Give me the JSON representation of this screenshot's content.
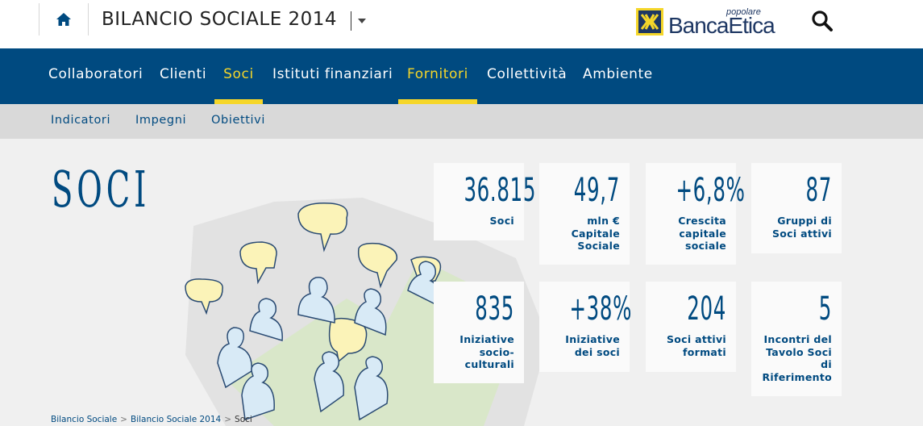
{
  "header": {
    "site_title": "BILANCIO SOCIALE 2014",
    "logo_small": "popolare",
    "logo_text": "BancaEtica",
    "icons": {
      "home": "home-icon",
      "dropdown": "caret-down-icon",
      "search": "search-icon"
    }
  },
  "main_nav": {
    "items": [
      {
        "label": "Collaboratori",
        "active": false
      },
      {
        "label": "Clienti",
        "active": false
      },
      {
        "label": "Soci",
        "active": true
      },
      {
        "label": "Istituti finanziari",
        "active": false
      },
      {
        "label": "Fornitori",
        "active": true
      },
      {
        "label": "Collettività",
        "active": false
      },
      {
        "label": "Ambiente",
        "active": false
      }
    ]
  },
  "sub_nav": {
    "items": [
      {
        "label": "Indicatori"
      },
      {
        "label": "Impegni"
      },
      {
        "label": "Obiettivi"
      }
    ]
  },
  "page": {
    "title": "SOCI"
  },
  "stats": [
    {
      "value": "36.815",
      "label": "Soci"
    },
    {
      "value": "49,7",
      "label": "mln € Capitale Sociale"
    },
    {
      "value": "+6,8%",
      "label": "Crescita capitale sociale"
    },
    {
      "value": "87",
      "label": "Gruppi di Soci attivi"
    },
    {
      "value": "835",
      "label": "Iniziative socio-culturali"
    },
    {
      "value": "+38%",
      "label": "Iniziative dei soci"
    },
    {
      "value": "204",
      "label": "Soci attivi formati"
    },
    {
      "value": "5",
      "label": "Incontri del Tavolo Soci di Riferimento"
    }
  ],
  "breadcrumb": {
    "items": [
      "Bilancio Sociale",
      "Bilancio Sociale 2014"
    ],
    "current": "Soci",
    "separator": ">"
  },
  "colors": {
    "brand_blue": "#004a80",
    "accent_yellow": "#f5d629",
    "subnav_bg": "#d9d9d9",
    "content_bg": "#f0f0f0"
  }
}
